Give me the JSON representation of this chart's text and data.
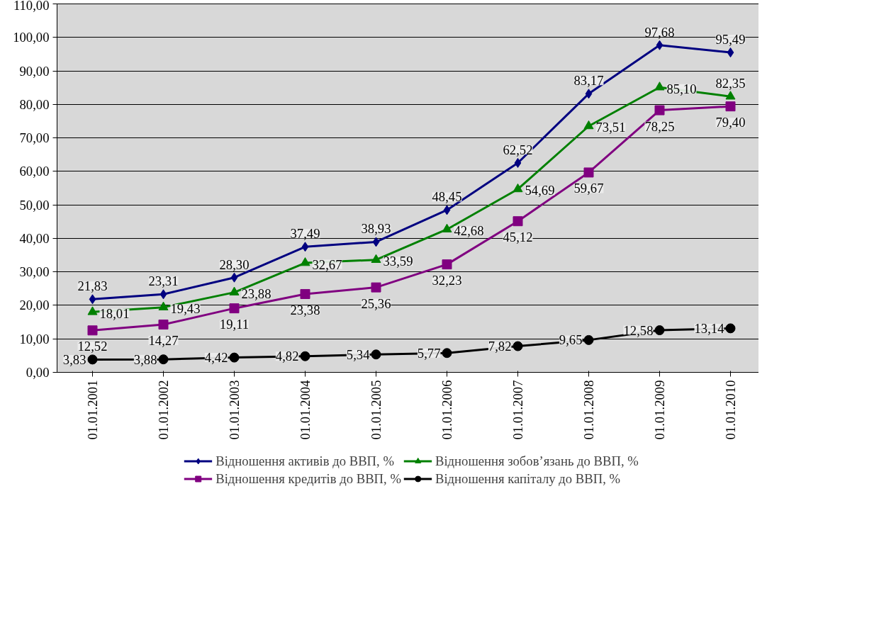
{
  "chart_data": {
    "type": "line",
    "categories": [
      "01.01.2001",
      "01.01.2002",
      "01.01.2003",
      "01.01.2004",
      "01.01.2005",
      "01.01.2006",
      "01.01.2007",
      "01.01.2008",
      "01.01.2009",
      "01.01.2010"
    ],
    "ylim": [
      0,
      110
    ],
    "yticks": [
      {
        "value": 0,
        "label": "0,00"
      },
      {
        "value": 10,
        "label": "10,00"
      },
      {
        "value": 20,
        "label": "20,00"
      },
      {
        "value": 30,
        "label": "30,00"
      },
      {
        "value": 40,
        "label": "40,00"
      },
      {
        "value": 50,
        "label": "50,00"
      },
      {
        "value": 60,
        "label": "60,00"
      },
      {
        "value": 70,
        "label": "70,00"
      },
      {
        "value": 80,
        "label": "80,00"
      },
      {
        "value": 90,
        "label": "90,00"
      },
      {
        "value": 100,
        "label": "100,00"
      },
      {
        "value": 110,
        "label": "110,00"
      }
    ],
    "grid": "y",
    "legend": "bottom",
    "line_style": "solid",
    "series": [
      {
        "name": "Відношення активів до ВВП, %",
        "color": "#000080",
        "marker": "diamond",
        "values": [
          21.83,
          23.31,
          28.3,
          37.49,
          38.93,
          48.45,
          62.52,
          83.17,
          97.68,
          95.49
        ],
        "value_labels": [
          "21,83",
          "23,31",
          "28,30",
          "37,49",
          "38,93",
          "48,45",
          "62,52",
          "83,17",
          "97,68",
          "95,49"
        ]
      },
      {
        "name": "Відношення кредитів до ВВП, %",
        "color": "#800080",
        "marker": "square",
        "values": [
          12.52,
          14.27,
          19.11,
          23.38,
          25.36,
          32.23,
          45.12,
          59.67,
          78.25,
          79.4
        ],
        "value_labels": [
          "12,52",
          "14,27",
          "19,11",
          "23,38",
          "25,36",
          "32,23",
          "45,12",
          "59,67",
          "78,25",
          "79,40"
        ]
      },
      {
        "name": "Відношення зобов’язань до ВВП, %",
        "color": "#008000",
        "marker": "triangle",
        "values": [
          18.01,
          19.43,
          23.88,
          32.67,
          33.59,
          42.68,
          54.69,
          73.51,
          85.1,
          82.35
        ],
        "value_labels": [
          "18,01",
          "19,43",
          "23,88",
          "32,67",
          "33,59",
          "42,68",
          "54,69",
          "73,51",
          "85,10",
          "82,35"
        ]
      },
      {
        "name": "Відношення капіталу до ВВП, %",
        "color": "#000000",
        "marker": "circle",
        "values": [
          3.83,
          3.88,
          4.42,
          4.82,
          5.34,
          5.77,
          7.82,
          9.65,
          12.58,
          13.14
        ],
        "value_labels": [
          "3,83",
          "3,88",
          "4,42",
          "4,82",
          "5,34",
          "5,77",
          "7,82",
          "9,65",
          "12,58",
          "13,14"
        ]
      }
    ]
  }
}
